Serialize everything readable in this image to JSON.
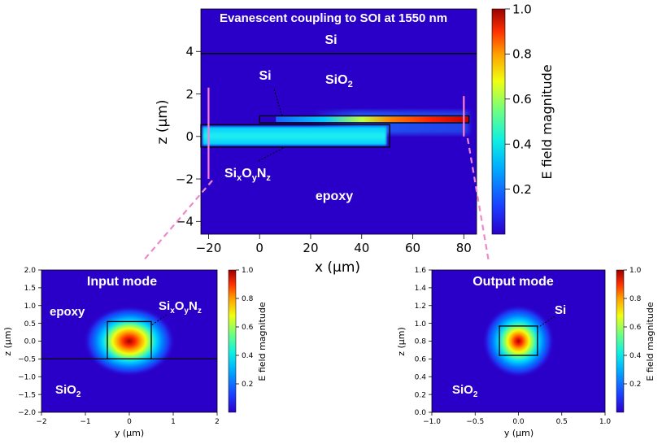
{
  "chart_data": [
    {
      "id": "main",
      "type": "heatmap",
      "title": "Evanescent coupling to SOI at 1550 nm",
      "xlabel": "x (μm)",
      "ylabel": "z (μm)",
      "xlim": [
        -23,
        85
      ],
      "ylim": [
        -4.6,
        6
      ],
      "xticks": [
        -20,
        0,
        20,
        40,
        60,
        80
      ],
      "xtick_labels": [
        "−20",
        "0",
        "20",
        "40",
        "60",
        "80"
      ],
      "yticks": [
        -4,
        -2,
        0,
        2,
        4
      ],
      "ytick_labels": [
        "−4",
        "−2",
        "0",
        "2",
        "4"
      ],
      "colorbar": {
        "label": "E field magnitude",
        "range": [
          0,
          1
        ],
        "ticks": [
          0.2,
          0.4,
          0.6,
          0.8,
          1.0
        ],
        "tick_labels": [
          "0.2",
          "0.4",
          "0.6",
          "0.8",
          "1.0"
        ]
      },
      "annotations": {
        "si_top": "Si",
        "si_strip": "Si",
        "sio2": "SiO",
        "sio2_sub": "2",
        "sixoynz": [
          "Si",
          "x",
          "O",
          "y",
          "N",
          "z"
        ],
        "epoxy": "epoxy"
      },
      "structures": {
        "si_substrate_boundary_z": 3.9,
        "si_strip": {
          "x": [
            0,
            82
          ],
          "z": [
            0.64,
            0.97
          ]
        },
        "sixoynz_core": {
          "x": [
            -23,
            51
          ],
          "z": [
            -0.5,
            0.55
          ]
        },
        "input_slice_x": -20,
        "output_slice_x": 80
      }
    },
    {
      "id": "input",
      "type": "heatmap",
      "title": "Input mode",
      "xlabel": "y (μm)",
      "ylabel": "z (μm)",
      "xlim": [
        -2,
        2
      ],
      "ylim": [
        -2,
        2
      ],
      "xticks": [
        -2,
        -1,
        0,
        1,
        2
      ],
      "xtick_labels": [
        "−2",
        "−1",
        "0",
        "1",
        "2"
      ],
      "yticks": [
        -2,
        -1.5,
        -1,
        -0.5,
        0,
        0.5,
        1,
        1.5,
        2
      ],
      "ytick_labels": [
        "−2.0",
        "−1.5",
        "−1.0",
        "−0.5",
        "0.0",
        "0.5",
        "1.0",
        "1.5",
        "2.0"
      ],
      "colorbar": {
        "label": "E field magnitude",
        "range": [
          0,
          1
        ],
        "ticks": [
          0.2,
          0.4,
          0.6,
          0.8,
          1.0
        ],
        "tick_labels": [
          "0.2",
          "0.4",
          "0.6",
          "0.8",
          "1.0"
        ]
      },
      "annotations": {
        "epoxy": "epoxy",
        "sio2": "SiO",
        "sio2_sub": "2",
        "sixoynz": [
          "Si",
          "x",
          "O",
          "y",
          "N",
          "z"
        ]
      },
      "structures": {
        "core": {
          "y": [
            -0.5,
            0.5
          ],
          "z": [
            -0.5,
            0.55
          ]
        },
        "interface_z": -0.5
      },
      "mode_peak": {
        "y": 0,
        "z": 0,
        "value": 1.0
      }
    },
    {
      "id": "output",
      "type": "heatmap",
      "title": "Output mode",
      "xlabel": "y (μm)",
      "ylabel": "z (μm)",
      "xlim": [
        -1,
        1
      ],
      "ylim": [
        0,
        1.6
      ],
      "xticks": [
        -1,
        -0.5,
        0,
        0.5,
        1
      ],
      "xtick_labels": [
        "−1.0",
        "−0.5",
        "0.0",
        "0.5",
        "1.0"
      ],
      "yticks": [
        0,
        0.2,
        0.4,
        0.6,
        0.8,
        1.0,
        1.2,
        1.4,
        1.6
      ],
      "ytick_labels": [
        "0.0",
        "0.2",
        "0.4",
        "0.6",
        "0.8",
        "1.0",
        "1.2",
        "1.4",
        "1.6"
      ],
      "colorbar": {
        "label": "E field magnitude",
        "range": [
          0,
          1
        ],
        "ticks": [
          0.2,
          0.4,
          0.6,
          0.8,
          1.0
        ],
        "tick_labels": [
          "0.2",
          "0.4",
          "0.6",
          "0.8",
          "1.0"
        ]
      },
      "annotations": {
        "si": "Si",
        "sio2": "SiO",
        "sio2_sub": "2"
      },
      "structures": {
        "core": {
          "y": [
            -0.22,
            0.22
          ],
          "z": [
            0.64,
            0.97
          ]
        }
      },
      "mode_peak": {
        "y": 0,
        "z": 0.8,
        "value": 1.0
      }
    }
  ],
  "colors": {
    "background": "#2a00c8",
    "connector": "#ee88cc",
    "slice_line": "#ff80d0",
    "outline": "#000000",
    "label_text": "#ffffff"
  }
}
